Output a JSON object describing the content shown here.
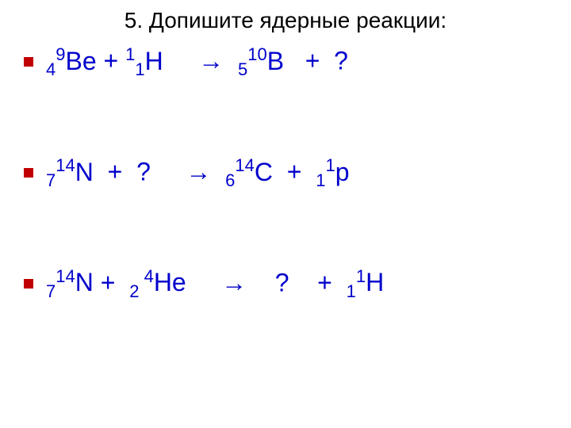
{
  "title": "5. Допишите ядерные реакции:",
  "colors": {
    "title_color": "#000000",
    "reaction_color": "#0000cc",
    "bullet_color": "#c00000",
    "background": "#ffffff"
  },
  "typography": {
    "title_fontsize": 28,
    "reaction_fontsize": 32,
    "subscript_fontsize": 22,
    "font_family": "Arial"
  },
  "reactions": [
    {
      "left": [
        {
          "sub": "4",
          "sup": "9",
          "symbol": "Be"
        },
        {
          "text": " + "
        },
        {
          "sup": "1",
          "sub": "1",
          "symbol": "H",
          "sup_before_sub": true
        }
      ],
      "arrow": "→",
      "right": [
        {
          "sub": "5",
          "sup": "10",
          "symbol": "B"
        },
        {
          "text": "   +  ?"
        }
      ]
    },
    {
      "left": [
        {
          "sub": "7",
          "sup": "14",
          "symbol": "N"
        },
        {
          "text": "  +  ?"
        }
      ],
      "arrow": "→",
      "right": [
        {
          "sub": "6",
          "sup": "14",
          "symbol": "C"
        },
        {
          "text": "  +  "
        },
        {
          "sub": "1",
          "sup": "1",
          "symbol": "p"
        }
      ]
    },
    {
      "left": [
        {
          "sub": "7",
          "sup": "14",
          "symbol": "N"
        },
        {
          "text": " +  "
        },
        {
          "sub": "2 ",
          "sup": "4",
          "symbol": "He"
        }
      ],
      "arrow": "→",
      "right": [
        {
          "text": "  ?    +  "
        },
        {
          "sub": "1",
          "sup": "1",
          "symbol": "H"
        }
      ]
    }
  ],
  "layout": {
    "slide_width": 720,
    "slide_height": 540,
    "reaction_spacing": 90,
    "arrow_spacing_left": "     ",
    "arrow_spacing_right": "  "
  }
}
